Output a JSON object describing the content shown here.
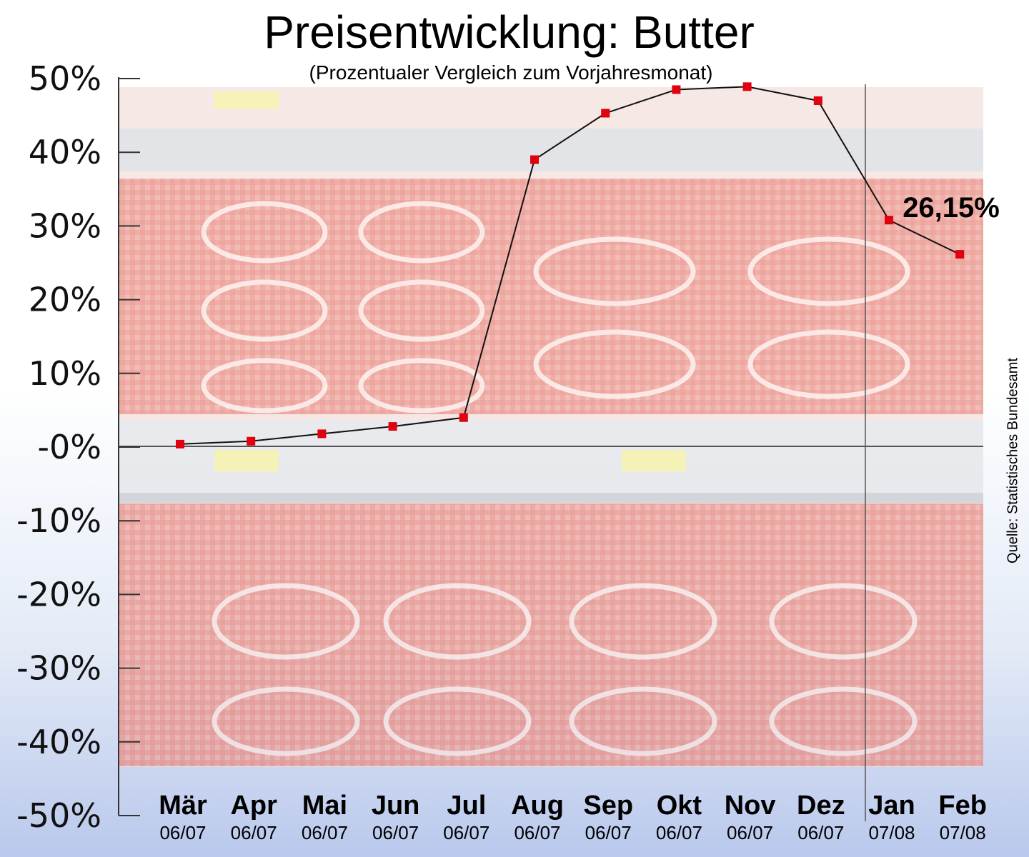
{
  "chart_data": {
    "type": "line",
    "title": "Preisentwicklung: Butter",
    "subtitle": "(Prozentualer Vergleich zum Vorjahresmonat)",
    "source": "Quelle: Statistisches Bundesamt",
    "y_tick_labels": [
      "50%",
      "40%",
      "30%",
      "20%",
      "10%",
      "-0%",
      "-10%",
      "-20%",
      "-30%",
      "-40%",
      "-50%"
    ],
    "ylim": [
      -50,
      50
    ],
    "categories": [
      {
        "month": "Mär",
        "year": "06/07"
      },
      {
        "month": "Apr",
        "year": "06/07"
      },
      {
        "month": "Mai",
        "year": "06/07"
      },
      {
        "month": "Jun",
        "year": "06/07"
      },
      {
        "month": "Jul",
        "year": "06/07"
      },
      {
        "month": "Aug",
        "year": "06/07"
      },
      {
        "month": "Sep",
        "year": "06/07"
      },
      {
        "month": "Okt",
        "year": "06/07"
      },
      {
        "month": "Nov",
        "year": "06/07"
      },
      {
        "month": "Dez",
        "year": "06/07"
      },
      {
        "month": "Jan",
        "year": "07/08"
      },
      {
        "month": "Feb",
        "year": "07/08"
      }
    ],
    "series": [
      {
        "values": [
          0.4,
          0.8,
          1.8,
          2.8,
          4.0,
          39.0,
          45.3,
          48.5,
          48.9,
          47.0,
          30.8,
          26.15
        ],
        "color": "#e00010"
      }
    ],
    "annotation": {
      "label": "26,15%",
      "point_index": 11
    },
    "background_image": "butter-on-supermarket-shelf",
    "grid": false
  }
}
